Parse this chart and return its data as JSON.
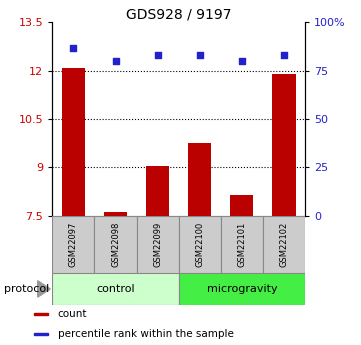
{
  "title": "GDS928 / 9197",
  "samples": [
    "GSM22097",
    "GSM22098",
    "GSM22099",
    "GSM22100",
    "GSM22101",
    "GSM22102"
  ],
  "bar_values": [
    12.1,
    7.6,
    9.05,
    9.75,
    8.15,
    11.9
  ],
  "dot_values": [
    87,
    80,
    83,
    83,
    80,
    83
  ],
  "ylim_left": [
    7.5,
    13.5
  ],
  "ylim_right": [
    0,
    100
  ],
  "yticks_left": [
    7.5,
    9.0,
    10.5,
    12.0,
    13.5
  ],
  "ytick_labels_left": [
    "7.5",
    "9",
    "10.5",
    "12",
    "13.5"
  ],
  "yticks_right": [
    0,
    25,
    50,
    75,
    100
  ],
  "ytick_labels_right": [
    "0",
    "25",
    "50",
    "75",
    "100%"
  ],
  "hlines": [
    9.0,
    10.5,
    12.0
  ],
  "bar_color": "#bb0000",
  "dot_color": "#2222cc",
  "bar_width": 0.55,
  "groups": [
    {
      "label": "control",
      "indices": [
        0,
        1,
        2
      ],
      "color": "#ccffcc"
    },
    {
      "label": "microgravity",
      "indices": [
        3,
        4,
        5
      ],
      "color": "#44ee44"
    }
  ],
  "protocol_label": "protocol",
  "legend_items": [
    {
      "color": "#bb0000",
      "label": "count"
    },
    {
      "color": "#2222cc",
      "label": "percentile rank within the sample"
    }
  ],
  "baseline": 7.5,
  "background_color": "#ffffff",
  "tick_label_color_left": "#cc0000",
  "tick_label_color_right": "#2222cc",
  "sample_box_color": "#cccccc",
  "sample_box_edge": "#888888"
}
